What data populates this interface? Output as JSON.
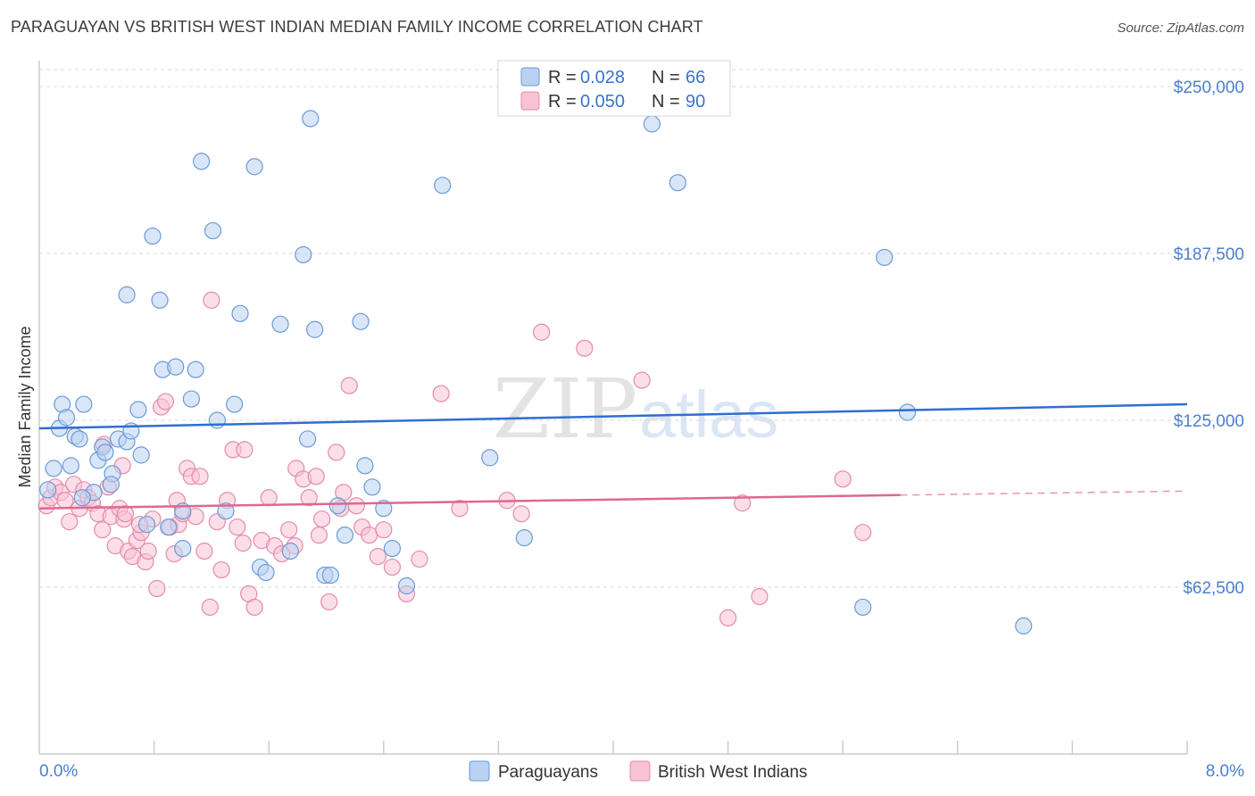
{
  "title": "PARAGUAYAN VS BRITISH WEST INDIAN MEDIAN FAMILY INCOME CORRELATION CHART",
  "source": "Source: ZipAtlas.com",
  "watermark": {
    "zip": "ZIP",
    "atlas": "atlas"
  },
  "colors": {
    "blue_fill": "#b9d1f2",
    "blue_stroke": "#6a9ad9",
    "blue_line": "#2f6fd0",
    "pink_fill": "#f7c3d4",
    "pink_stroke": "#e58bab",
    "pink_line": "#e0678f",
    "grid": "#d9d9d9",
    "axis_label": "#4a7fd0"
  },
  "legend": {
    "items": [
      {
        "r_label": "R = ",
        "r_value": "0.028",
        "n_label": "N = ",
        "n_value": "66"
      },
      {
        "r_label": "R = ",
        "r_value": "0.050",
        "n_label": "N = ",
        "n_value": "90"
      }
    ]
  },
  "bottom_legend": [
    "Paraguayans",
    "British West Indians"
  ],
  "chart_data": {
    "type": "scatter",
    "title": "PARAGUAYAN VS BRITISH WEST INDIAN MEDIAN FAMILY INCOME CORRELATION CHART",
    "xlabel": "",
    "ylabel": "Median Family Income",
    "xlim": [
      0,
      8
    ],
    "ylim": [
      0,
      250000
    ],
    "x_tick_labels": [
      "0.0%",
      "8.0%"
    ],
    "y_ticks": [
      62500,
      125000,
      187500,
      250000
    ],
    "y_tick_labels": [
      "$62,500",
      "$125,000",
      "$187,500",
      "$250,000"
    ],
    "series": [
      {
        "name": "Paraguayans",
        "color": "#6a9ad9",
        "trend": {
          "x": [
            0,
            8
          ],
          "y": [
            122000,
            131000
          ]
        },
        "points": [
          [
            0.06,
            99000
          ],
          [
            0.1,
            107000
          ],
          [
            0.14,
            122000
          ],
          [
            0.16,
            131000
          ],
          [
            0.19,
            126000
          ],
          [
            0.22,
            108000
          ],
          [
            0.25,
            119000
          ],
          [
            0.28,
            118000
          ],
          [
            0.31,
            131000
          ],
          [
            0.38,
            98000
          ],
          [
            0.41,
            110000
          ],
          [
            0.44,
            115000
          ],
          [
            0.46,
            113000
          ],
          [
            0.51,
            105000
          ],
          [
            0.55,
            118000
          ],
          [
            0.61,
            117000
          ],
          [
            0.64,
            121000
          ],
          [
            0.69,
            129000
          ],
          [
            0.71,
            112000
          ],
          [
            0.75,
            86000
          ],
          [
            0.61,
            172000
          ],
          [
            0.79,
            194000
          ],
          [
            0.86,
            144000
          ],
          [
            0.95,
            145000
          ],
          [
            1.0,
            77000
          ],
          [
            0.84,
            170000
          ],
          [
            1.06,
            133000
          ],
          [
            1.09,
            144000
          ],
          [
            1.13,
            222000
          ],
          [
            1.21,
            196000
          ],
          [
            1.24,
            125000
          ],
          [
            1.3,
            91000
          ],
          [
            1.36,
            131000
          ],
          [
            1.4,
            165000
          ],
          [
            1.5,
            220000
          ],
          [
            1.54,
            70000
          ],
          [
            1.58,
            68000
          ],
          [
            1.68,
            161000
          ],
          [
            1.75,
            76000
          ],
          [
            1.84,
            187000
          ],
          [
            1.87,
            118000
          ],
          [
            1.89,
            238000
          ],
          [
            1.92,
            159000
          ],
          [
            1.99,
            67000
          ],
          [
            2.03,
            67000
          ],
          [
            2.08,
            93000
          ],
          [
            2.13,
            82000
          ],
          [
            2.24,
            162000
          ],
          [
            2.27,
            108000
          ],
          [
            2.32,
            100000
          ],
          [
            2.4,
            92000
          ],
          [
            2.46,
            77000
          ],
          [
            2.56,
            63000
          ],
          [
            2.81,
            213000
          ],
          [
            3.14,
            111000
          ],
          [
            3.38,
            81000
          ],
          [
            4.27,
            236000
          ],
          [
            4.45,
            214000
          ],
          [
            5.89,
            186000
          ],
          [
            6.05,
            128000
          ],
          [
            5.74,
            55000
          ],
          [
            6.86,
            48000
          ],
          [
            0.3,
            96000
          ],
          [
            0.5,
            101000
          ],
          [
            1.0,
            91000
          ],
          [
            0.9,
            85000
          ]
        ]
      },
      {
        "name": "British West Indians",
        "color": "#e58bab",
        "trend": {
          "x": [
            0,
            6
          ],
          "y": [
            92000,
            97000
          ]
        },
        "trend_dashed": {
          "x": [
            6,
            8
          ],
          "y": [
            97000,
            98500
          ]
        },
        "points": [
          [
            0.05,
            93000
          ],
          [
            0.08,
            96000
          ],
          [
            0.11,
            100000
          ],
          [
            0.15,
            98000
          ],
          [
            0.18,
            95000
          ],
          [
            0.21,
            87000
          ],
          [
            0.24,
            101000
          ],
          [
            0.28,
            92000
          ],
          [
            0.31,
            99000
          ],
          [
            0.34,
            96000
          ],
          [
            0.37,
            94000
          ],
          [
            0.41,
            90000
          ],
          [
            0.44,
            84000
          ],
          [
            0.48,
            100000
          ],
          [
            0.5,
            89000
          ],
          [
            0.53,
            78000
          ],
          [
            0.56,
            92000
          ],
          [
            0.59,
            88000
          ],
          [
            0.62,
            76000
          ],
          [
            0.65,
            74000
          ],
          [
            0.68,
            80000
          ],
          [
            0.71,
            83000
          ],
          [
            0.74,
            72000
          ],
          [
            0.76,
            76000
          ],
          [
            0.79,
            88000
          ],
          [
            0.82,
            62000
          ],
          [
            0.85,
            130000
          ],
          [
            0.88,
            132000
          ],
          [
            0.91,
            85000
          ],
          [
            0.94,
            75000
          ],
          [
            0.97,
            86000
          ],
          [
            1.0,
            90000
          ],
          [
            1.03,
            107000
          ],
          [
            1.06,
            104000
          ],
          [
            1.09,
            89000
          ],
          [
            1.12,
            104000
          ],
          [
            1.15,
            76000
          ],
          [
            1.19,
            55000
          ],
          [
            1.24,
            87000
          ],
          [
            1.27,
            69000
          ],
          [
            1.31,
            95000
          ],
          [
            1.35,
            114000
          ],
          [
            1.38,
            85000
          ],
          [
            1.42,
            79000
          ],
          [
            1.46,
            60000
          ],
          [
            1.5,
            55000
          ],
          [
            1.55,
            80000
          ],
          [
            1.6,
            96000
          ],
          [
            1.64,
            78000
          ],
          [
            1.69,
            75000
          ],
          [
            1.74,
            84000
          ],
          [
            1.79,
            107000
          ],
          [
            1.84,
            103000
          ],
          [
            1.88,
            96000
          ],
          [
            1.93,
            104000
          ],
          [
            1.97,
            88000
          ],
          [
            2.02,
            57000
          ],
          [
            2.07,
            113000
          ],
          [
            2.1,
            92000
          ],
          [
            2.16,
            138000
          ],
          [
            2.21,
            93000
          ],
          [
            2.25,
            85000
          ],
          [
            2.3,
            82000
          ],
          [
            2.36,
            74000
          ],
          [
            2.4,
            84000
          ],
          [
            2.46,
            70000
          ],
          [
            2.56,
            60000
          ],
          [
            2.65,
            73000
          ],
          [
            2.8,
            135000
          ],
          [
            2.93,
            92000
          ],
          [
            3.26,
            95000
          ],
          [
            3.36,
            90000
          ],
          [
            3.5,
            158000
          ],
          [
            3.8,
            152000
          ],
          [
            4.2,
            140000
          ],
          [
            4.8,
            51000
          ],
          [
            4.9,
            94000
          ],
          [
            5.02,
            59000
          ],
          [
            5.6,
            103000
          ],
          [
            5.74,
            83000
          ],
          [
            1.2,
            170000
          ],
          [
            1.43,
            114000
          ],
          [
            0.96,
            95000
          ],
          [
            0.7,
            86000
          ],
          [
            0.58,
            108000
          ],
          [
            1.78,
            78000
          ],
          [
            1.95,
            82000
          ],
          [
            2.12,
            98000
          ],
          [
            0.45,
            116000
          ],
          [
            0.6,
            90000
          ]
        ]
      }
    ]
  }
}
